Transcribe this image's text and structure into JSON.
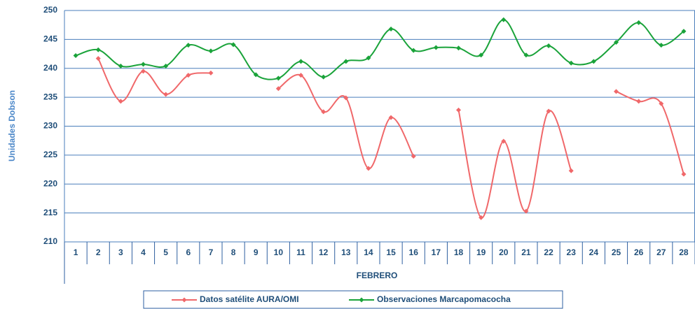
{
  "chart_data": {
    "type": "line",
    "x_label": "FEBRERO",
    "y_label": "Unidades Dobson",
    "categories": [
      "1",
      "2",
      "3",
      "4",
      "5",
      "6",
      "7",
      "8",
      "9",
      "10",
      "11",
      "12",
      "13",
      "14",
      "15",
      "16",
      "17",
      "18",
      "19",
      "20",
      "21",
      "22",
      "23",
      "24",
      "25",
      "26",
      "27",
      "28"
    ],
    "series": [
      {
        "name": "Datos satélite AURA/OMI",
        "color": "#f0686a",
        "values": [
          null,
          241.7,
          234.3,
          239.5,
          235.5,
          238.8,
          239.2,
          null,
          null,
          236.5,
          238.8,
          232.5,
          234.9,
          222.7,
          231.5,
          224.8,
          null,
          232.8,
          214.2,
          227.4,
          215.3,
          232.6,
          222.3,
          null,
          236.0,
          234.3,
          233.9,
          221.7
        ]
      },
      {
        "name": "Observaciones Marcapomacocha",
        "color": "#1aa33a",
        "values": [
          242.2,
          243.2,
          240.4,
          240.7,
          240.4,
          244.0,
          243.0,
          244.1,
          238.9,
          238.3,
          241.2,
          238.5,
          241.2,
          241.8,
          246.8,
          243.1,
          243.6,
          243.5,
          242.3,
          248.4,
          242.3,
          243.9,
          240.9,
          241.2,
          244.5,
          247.9,
          244.0,
          246.4
        ]
      }
    ],
    "ylim": [
      210,
      250
    ],
    "yticks": [
      210,
      215,
      220,
      225,
      230,
      235,
      240,
      245,
      250
    ],
    "grid": true,
    "legend": "bottom",
    "smooth": true
  }
}
